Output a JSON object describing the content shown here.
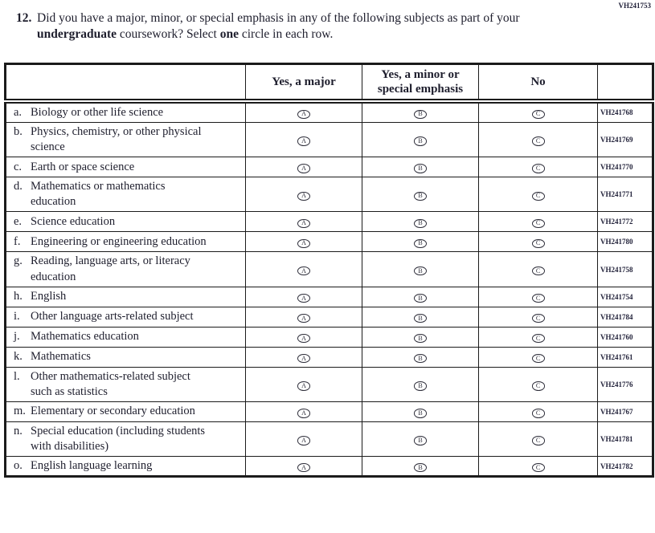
{
  "page_code": "VH241753",
  "question": {
    "number": "12.",
    "segments": [
      {
        "text": "Did you have a major, minor, or special emphasis in any of the following subjects as part of your ",
        "bold": false
      },
      {
        "text": "undergraduate",
        "bold": true
      },
      {
        "text": " coursework? Select ",
        "bold": false
      },
      {
        "text": "one",
        "bold": true
      },
      {
        "text": " circle in each row.",
        "bold": false
      }
    ]
  },
  "table": {
    "column_headers": [
      "",
      "Yes, a major",
      "Yes, a minor or special emphasis",
      "No",
      ""
    ],
    "option_letters": [
      "A",
      "B",
      "C"
    ],
    "rows": [
      {
        "letter": "a.",
        "label": "Biology or other life science",
        "code": "VH241768"
      },
      {
        "letter": "b.",
        "label": "Physics, chemistry, or other physical science",
        "code": "VH241769"
      },
      {
        "letter": "c.",
        "label": "Earth or space science",
        "code": "VH241770"
      },
      {
        "letter": "d.",
        "label": "Mathematics or mathematics education",
        "code": "VH241771"
      },
      {
        "letter": "e.",
        "label": "Science education",
        "code": "VH241772"
      },
      {
        "letter": "f.",
        "label": "Engineering or engineering education",
        "code": "VH241780"
      },
      {
        "letter": "g.",
        "label": "Reading, language arts, or literacy education",
        "code": "VH241758"
      },
      {
        "letter": "h.",
        "label": "English",
        "code": "VH241754"
      },
      {
        "letter": "i.",
        "label": "Other language arts-related subject",
        "code": "VH241784"
      },
      {
        "letter": "j.",
        "label": "Mathematics education",
        "code": "VH241760"
      },
      {
        "letter": "k.",
        "label": "Mathematics",
        "code": "VH241761"
      },
      {
        "letter": "l.",
        "label": "Other mathematics-related subject such as statistics",
        "code": "VH241776"
      },
      {
        "letter": "m.",
        "label": "Elementary or secondary education",
        "code": "VH241767"
      },
      {
        "letter": "n.",
        "label": "Special education (including students with disabilities)",
        "code": "VH241781"
      },
      {
        "letter": "o.",
        "label": "English language learning",
        "code": "VH241782"
      }
    ]
  },
  "colors": {
    "text": "#1e1e2d",
    "border": "#1b1b1b",
    "background": "#ffffff"
  }
}
